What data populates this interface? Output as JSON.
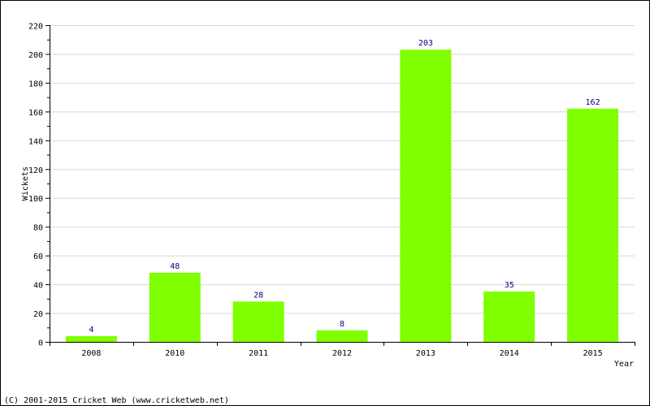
{
  "chart_data": {
    "type": "bar",
    "categories": [
      "2008",
      "2010",
      "2011",
      "2012",
      "2013",
      "2014",
      "2015"
    ],
    "values": [
      4,
      48,
      28,
      8,
      203,
      35,
      162
    ],
    "xlabel": "Year",
    "ylabel": "Wickets",
    "ylim": [
      0,
      220
    ],
    "yticks": [
      0,
      20,
      40,
      60,
      80,
      100,
      120,
      140,
      160,
      180,
      200,
      220
    ],
    "grid": true,
    "colors": {
      "bar": "#80ff00",
      "data_label": "#000080",
      "grid": "#d8d8d8"
    }
  },
  "footer": {
    "copyright": "(C) 2001-2015 Cricket Web (www.cricketweb.net)"
  }
}
